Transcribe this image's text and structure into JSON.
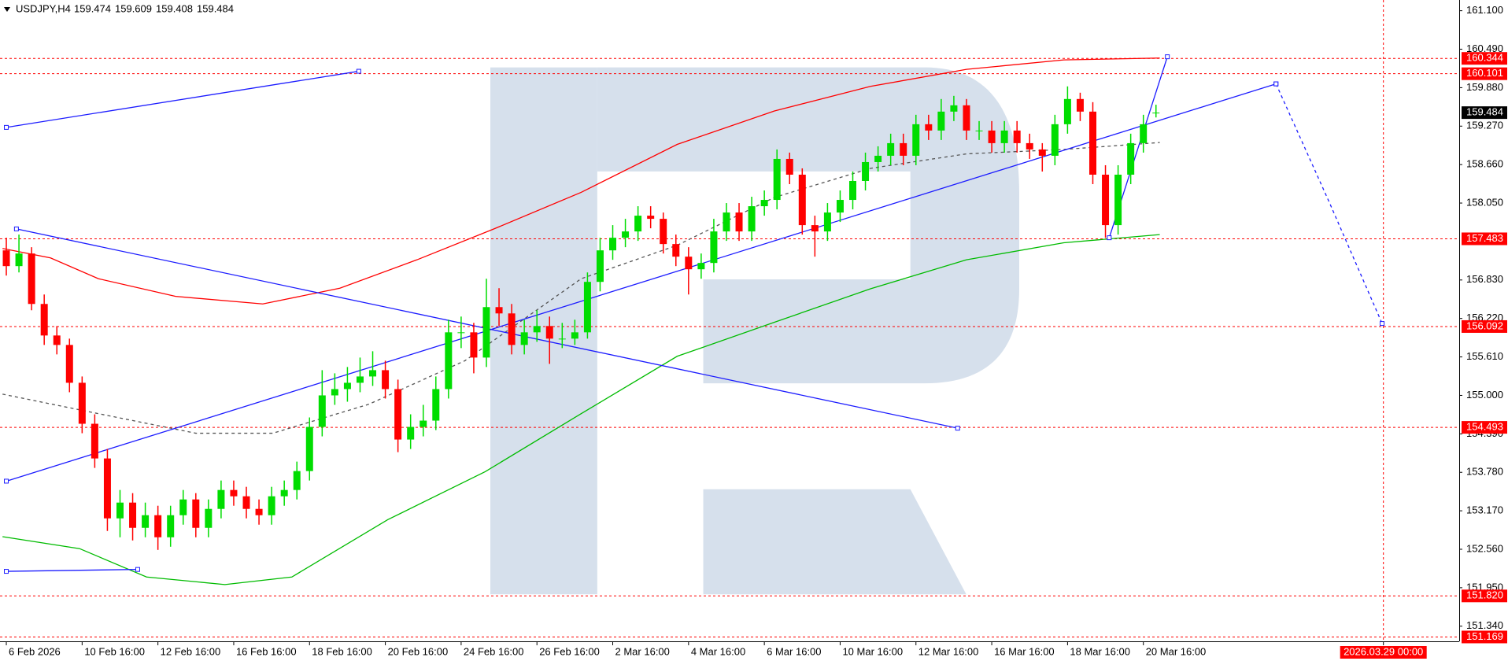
{
  "chart_data": {
    "type": "candlestick",
    "symbol": "USDJPY,H4",
    "ylim": [
      151.1,
      161.27
    ],
    "xlim": [
      -0.5,
      115
    ],
    "yticks": [
      {
        "value": 161.1,
        "label": "161.100"
      },
      {
        "value": 160.49,
        "label": "160.490"
      },
      {
        "value": 159.88,
        "label": "159.880"
      },
      {
        "value": 159.27,
        "label": "159.270"
      },
      {
        "value": 158.66,
        "label": "158.660"
      },
      {
        "value": 158.05,
        "label": "158.050"
      },
      {
        "value": 156.83,
        "label": "156.830"
      },
      {
        "value": 156.22,
        "label": "156.220"
      },
      {
        "value": 155.61,
        "label": "155.610"
      },
      {
        "value": 155.0,
        "label": "155.000"
      },
      {
        "value": 154.39,
        "label": "154.390"
      },
      {
        "value": 153.78,
        "label": "153.780"
      },
      {
        "value": 153.17,
        "label": "153.170"
      },
      {
        "value": 152.56,
        "label": "152.560"
      },
      {
        "value": 151.95,
        "label": "151.950"
      },
      {
        "value": 151.34,
        "label": "151.340"
      }
    ],
    "xticks": [
      {
        "value": 0,
        "label": "6 Feb 2026"
      },
      {
        "value": 6,
        "label": "10 Feb 16:00"
      },
      {
        "value": 12,
        "label": "12 Feb 16:00"
      },
      {
        "value": 18,
        "label": "16 Feb 16:00"
      },
      {
        "value": 24,
        "label": "18 Feb 16:00"
      },
      {
        "value": 30,
        "label": "20 Feb 16:00"
      },
      {
        "value": 36,
        "label": "24 Feb 16:00"
      },
      {
        "value": 42,
        "label": "26 Feb 16:00"
      },
      {
        "value": 48,
        "label": "2 Mar 16:00"
      },
      {
        "value": 54,
        "label": "4 Mar 16:00"
      },
      {
        "value": 60,
        "label": "6 Mar 16:00"
      },
      {
        "value": 66,
        "label": "10 Mar 16:00"
      },
      {
        "value": 72,
        "label": "12 Mar 16:00"
      },
      {
        "value": 78,
        "label": "16 Mar 16:00"
      },
      {
        "value": 84,
        "label": "18 Mar 16:00"
      },
      {
        "value": 90,
        "label": "20 Mar 16:00"
      },
      {
        "value": 109,
        "label": "2026.03.29 00:00"
      }
    ],
    "marker_tick": 16,
    "up_color": "#00dd00",
    "down_color": "#ff0000",
    "candles": [
      [
        157.3,
        157.5,
        156.9,
        157.05
      ],
      [
        157.05,
        157.55,
        156.95,
        157.25
      ],
      [
        157.25,
        157.35,
        156.35,
        156.45
      ],
      [
        156.45,
        156.6,
        155.8,
        155.95
      ],
      [
        155.95,
        156.1,
        155.65,
        155.8
      ],
      [
        155.8,
        155.9,
        155.05,
        155.2
      ],
      [
        155.2,
        155.3,
        154.4,
        154.55
      ],
      [
        154.55,
        154.7,
        153.85,
        154.0
      ],
      [
        154.0,
        154.15,
        152.85,
        153.05
      ],
      [
        153.05,
        153.5,
        152.75,
        153.3
      ],
      [
        153.3,
        153.45,
        152.7,
        152.9
      ],
      [
        152.9,
        153.3,
        152.75,
        153.1
      ],
      [
        153.1,
        153.25,
        152.55,
        152.75
      ],
      [
        152.75,
        153.25,
        152.6,
        153.1
      ],
      [
        153.1,
        153.5,
        152.95,
        153.35
      ],
      [
        153.35,
        153.45,
        152.75,
        152.9
      ],
      [
        152.9,
        153.35,
        152.75,
        153.2
      ],
      [
        153.2,
        153.65,
        153.05,
        153.5
      ],
      [
        153.5,
        153.65,
        153.25,
        153.4
      ],
      [
        153.4,
        153.55,
        153.05,
        153.2
      ],
      [
        153.2,
        153.35,
        152.95,
        153.1
      ],
      [
        153.1,
        153.55,
        152.95,
        153.4
      ],
      [
        153.4,
        153.65,
        153.25,
        153.5
      ],
      [
        153.5,
        153.95,
        153.35,
        153.8
      ],
      [
        153.8,
        154.65,
        153.65,
        154.5
      ],
      [
        154.5,
        155.4,
        154.35,
        155.0
      ],
      [
        155.0,
        155.35,
        154.85,
        155.1
      ],
      [
        155.1,
        155.45,
        154.9,
        155.2
      ],
      [
        155.2,
        155.6,
        155.05,
        155.3
      ],
      [
        155.3,
        155.7,
        155.15,
        155.4
      ],
      [
        155.4,
        155.55,
        154.95,
        155.1
      ],
      [
        155.1,
        155.25,
        154.1,
        154.3
      ],
      [
        154.3,
        154.7,
        154.15,
        154.5
      ],
      [
        154.5,
        154.85,
        154.35,
        154.6
      ],
      [
        154.6,
        155.3,
        154.45,
        155.1
      ],
      [
        155.1,
        156.2,
        154.95,
        156.0
      ],
      [
        156.0,
        156.25,
        155.75,
        156.0
      ],
      [
        156.0,
        156.15,
        155.35,
        155.6
      ],
      [
        155.6,
        156.85,
        155.45,
        156.4
      ],
      [
        156.4,
        156.7,
        156.1,
        156.3
      ],
      [
        156.3,
        156.45,
        155.65,
        155.8
      ],
      [
        155.8,
        156.2,
        155.65,
        156.0
      ],
      [
        156.0,
        156.35,
        155.85,
        156.1
      ],
      [
        156.1,
        156.25,
        155.5,
        155.9
      ],
      [
        155.9,
        156.15,
        155.75,
        155.9
      ],
      [
        155.9,
        156.2,
        155.8,
        156.0
      ],
      [
        156.0,
        156.95,
        155.9,
        156.8
      ],
      [
        156.8,
        157.5,
        156.65,
        157.3
      ],
      [
        157.3,
        157.7,
        157.15,
        157.5
      ],
      [
        157.5,
        157.8,
        157.35,
        157.6
      ],
      [
        157.6,
        158.0,
        157.45,
        157.85
      ],
      [
        157.85,
        158.0,
        157.65,
        157.8
      ],
      [
        157.8,
        157.9,
        157.25,
        157.4
      ],
      [
        157.4,
        157.55,
        157.05,
        157.2
      ],
      [
        157.2,
        157.35,
        156.6,
        157.0
      ],
      [
        157.0,
        157.25,
        156.85,
        157.1
      ],
      [
        157.1,
        157.8,
        156.95,
        157.6
      ],
      [
        157.6,
        158.05,
        157.45,
        157.9
      ],
      [
        157.9,
        158.05,
        157.45,
        157.6
      ],
      [
        157.6,
        158.15,
        157.45,
        158.0
      ],
      [
        158.0,
        158.25,
        157.85,
        158.1
      ],
      [
        158.1,
        158.9,
        157.95,
        158.75
      ],
      [
        158.75,
        158.85,
        158.35,
        158.5
      ],
      [
        158.5,
        158.6,
        157.55,
        157.7
      ],
      [
        157.7,
        157.85,
        157.2,
        157.6
      ],
      [
        157.6,
        158.05,
        157.45,
        157.9
      ],
      [
        157.9,
        158.25,
        157.75,
        158.1
      ],
      [
        158.1,
        158.55,
        157.95,
        158.4
      ],
      [
        158.4,
        158.85,
        158.25,
        158.7
      ],
      [
        158.7,
        158.95,
        158.55,
        158.8
      ],
      [
        158.8,
        159.15,
        158.65,
        159.0
      ],
      [
        159.0,
        159.15,
        158.65,
        158.8
      ],
      [
        158.8,
        159.45,
        158.65,
        159.3
      ],
      [
        159.3,
        159.45,
        159.05,
        159.2
      ],
      [
        159.2,
        159.7,
        159.05,
        159.5
      ],
      [
        159.5,
        159.75,
        159.35,
        159.6
      ],
      [
        159.6,
        159.7,
        159.05,
        159.2
      ],
      [
        159.2,
        159.35,
        159.05,
        159.2
      ],
      [
        159.2,
        159.35,
        158.85,
        159.0
      ],
      [
        159.0,
        159.35,
        158.85,
        159.2
      ],
      [
        159.2,
        159.35,
        158.85,
        159.0
      ],
      [
        159.0,
        159.15,
        158.75,
        158.9
      ],
      [
        158.9,
        159.0,
        158.55,
        158.8
      ],
      [
        158.8,
        159.45,
        158.65,
        159.3
      ],
      [
        159.3,
        159.9,
        159.15,
        159.7
      ],
      [
        159.7,
        159.8,
        159.35,
        159.5
      ],
      [
        159.5,
        159.65,
        158.35,
        158.5
      ],
      [
        158.5,
        158.65,
        157.5,
        157.7
      ],
      [
        157.7,
        158.65,
        157.55,
        158.5
      ],
      [
        158.5,
        159.15,
        158.35,
        159.0
      ],
      [
        159.0,
        159.45,
        158.85,
        159.3
      ],
      [
        159.474,
        159.609,
        159.408,
        159.484
      ]
    ],
    "overlays": [
      {
        "color": "#ff0000",
        "x": [
          -0.3,
          3.5,
          7.3,
          13.4,
          20.3,
          26.4,
          32.5,
          38.6,
          45.5,
          53.1,
          60.8,
          68.4,
          76.0,
          83.7,
          91.3
        ],
        "values": [
          157.33,
          157.18,
          156.85,
          156.57,
          156.45,
          156.7,
          157.15,
          157.64,
          158.22,
          158.98,
          159.51,
          159.9,
          160.17,
          160.32,
          160.35
        ]
      },
      {
        "color": "#00bb00",
        "x": [
          -0.3,
          5.8,
          11.1,
          17.3,
          22.6,
          30.2,
          37.9,
          45.5,
          53.1,
          60.8,
          68.4,
          76.0,
          83.7,
          91.3
        ],
        "values": [
          152.76,
          152.57,
          152.12,
          152.0,
          152.12,
          153.03,
          153.79,
          154.71,
          155.62,
          156.16,
          156.69,
          157.15,
          157.42,
          157.55
        ]
      },
      {
        "color": "#555555",
        "dash": true,
        "x": [
          -0.3,
          7.3,
          15.0,
          21.1,
          28.7,
          36.3,
          45.5,
          53.1,
          60.8,
          68.4,
          76.0,
          83.7,
          91.3
        ],
        "values": [
          155.02,
          154.71,
          154.4,
          154.4,
          154.86,
          155.55,
          156.85,
          157.38,
          158.14,
          158.6,
          158.83,
          158.9,
          159.01
        ]
      },
      {
        "color": "#1c1cff",
        "x": [
          0,
          27.9
        ],
        "values": [
          159.25,
          160.14
        ]
      },
      {
        "color": "#1c1cff",
        "x": [
          0.8,
          75.3
        ],
        "values": [
          157.64,
          154.48
        ]
      },
      {
        "color": "#1c1cff",
        "x": [
          0,
          100.5
        ],
        "values": [
          153.64,
          159.94
        ]
      },
      {
        "color": "#1c1cff",
        "dash": true,
        "x": [
          100.5,
          104.7,
          108.9
        ],
        "values": [
          159.94,
          158.07,
          156.14
        ]
      },
      {
        "color": "#1c1cff",
        "x": [
          0,
          10.4
        ],
        "values": [
          152.21,
          152.24
        ]
      },
      {
        "color": "#1c1cff",
        "x": [
          87.3,
          91.9
        ],
        "values": [
          157.5,
          160.37
        ]
      }
    ],
    "levels": [
      160.344,
      160.101,
      157.483,
      156.092,
      154.493,
      {
        "value": 151.82,
        "label": "151.820"
      },
      151.169
    ],
    "level_color": "#ff0000",
    "last_price": 159.484
  }
}
